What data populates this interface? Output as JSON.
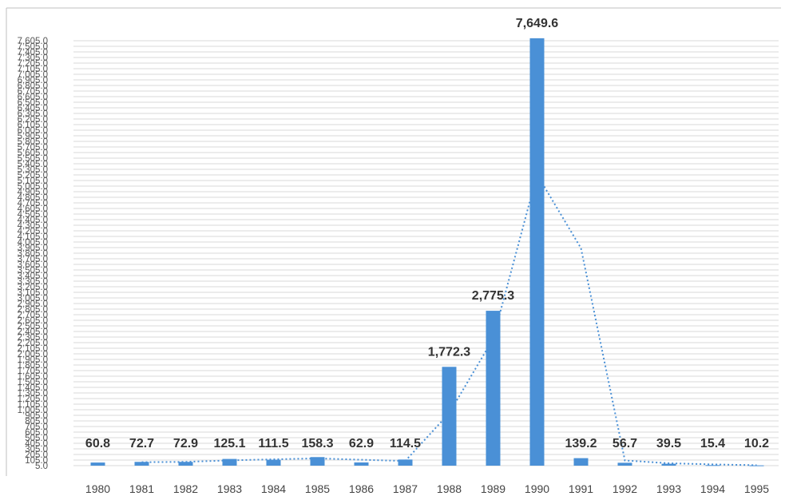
{
  "chart_data": {
    "type": "bar",
    "title": "",
    "xlabel": "",
    "ylabel": "",
    "categories": [
      "1980",
      "1981",
      "1982",
      "1983",
      "1984",
      "1985",
      "1986",
      "1987",
      "1988",
      "1989",
      "1990",
      "1991",
      "1992",
      "1993",
      "1994",
      "1995"
    ],
    "series": [
      {
        "values": [
          60.8,
          72.7,
          72.9,
          125.1,
          111.5,
          158.3,
          62.9,
          114.5,
          1772.3,
          2775.3,
          7649.6,
          139.2,
          56.7,
          39.5,
          15.4,
          10.2
        ],
        "labels": [
          "60.8",
          "72.7",
          "72.9",
          "125.1",
          "111.5",
          "158.3",
          "62.9",
          "114.5",
          "1,772.3",
          "2,775.3",
          "7,649.6",
          "139.2",
          "56.7",
          "39.5",
          "15.4",
          "10.2"
        ],
        "color": "#4a90d6"
      },
      {
        "type": "trendline",
        "style": "dotted",
        "color": "#4a90d6"
      }
    ],
    "y_ticks_start": 5,
    "y_ticks_step": 100,
    "y_tick_top": 7605,
    "ylim": [
      5,
      7605
    ],
    "grid": true,
    "legend": "none"
  },
  "colors": {
    "bar": "#4a90d6",
    "gridline": "#d9d9d9",
    "frame": "#bfbfbf"
  }
}
